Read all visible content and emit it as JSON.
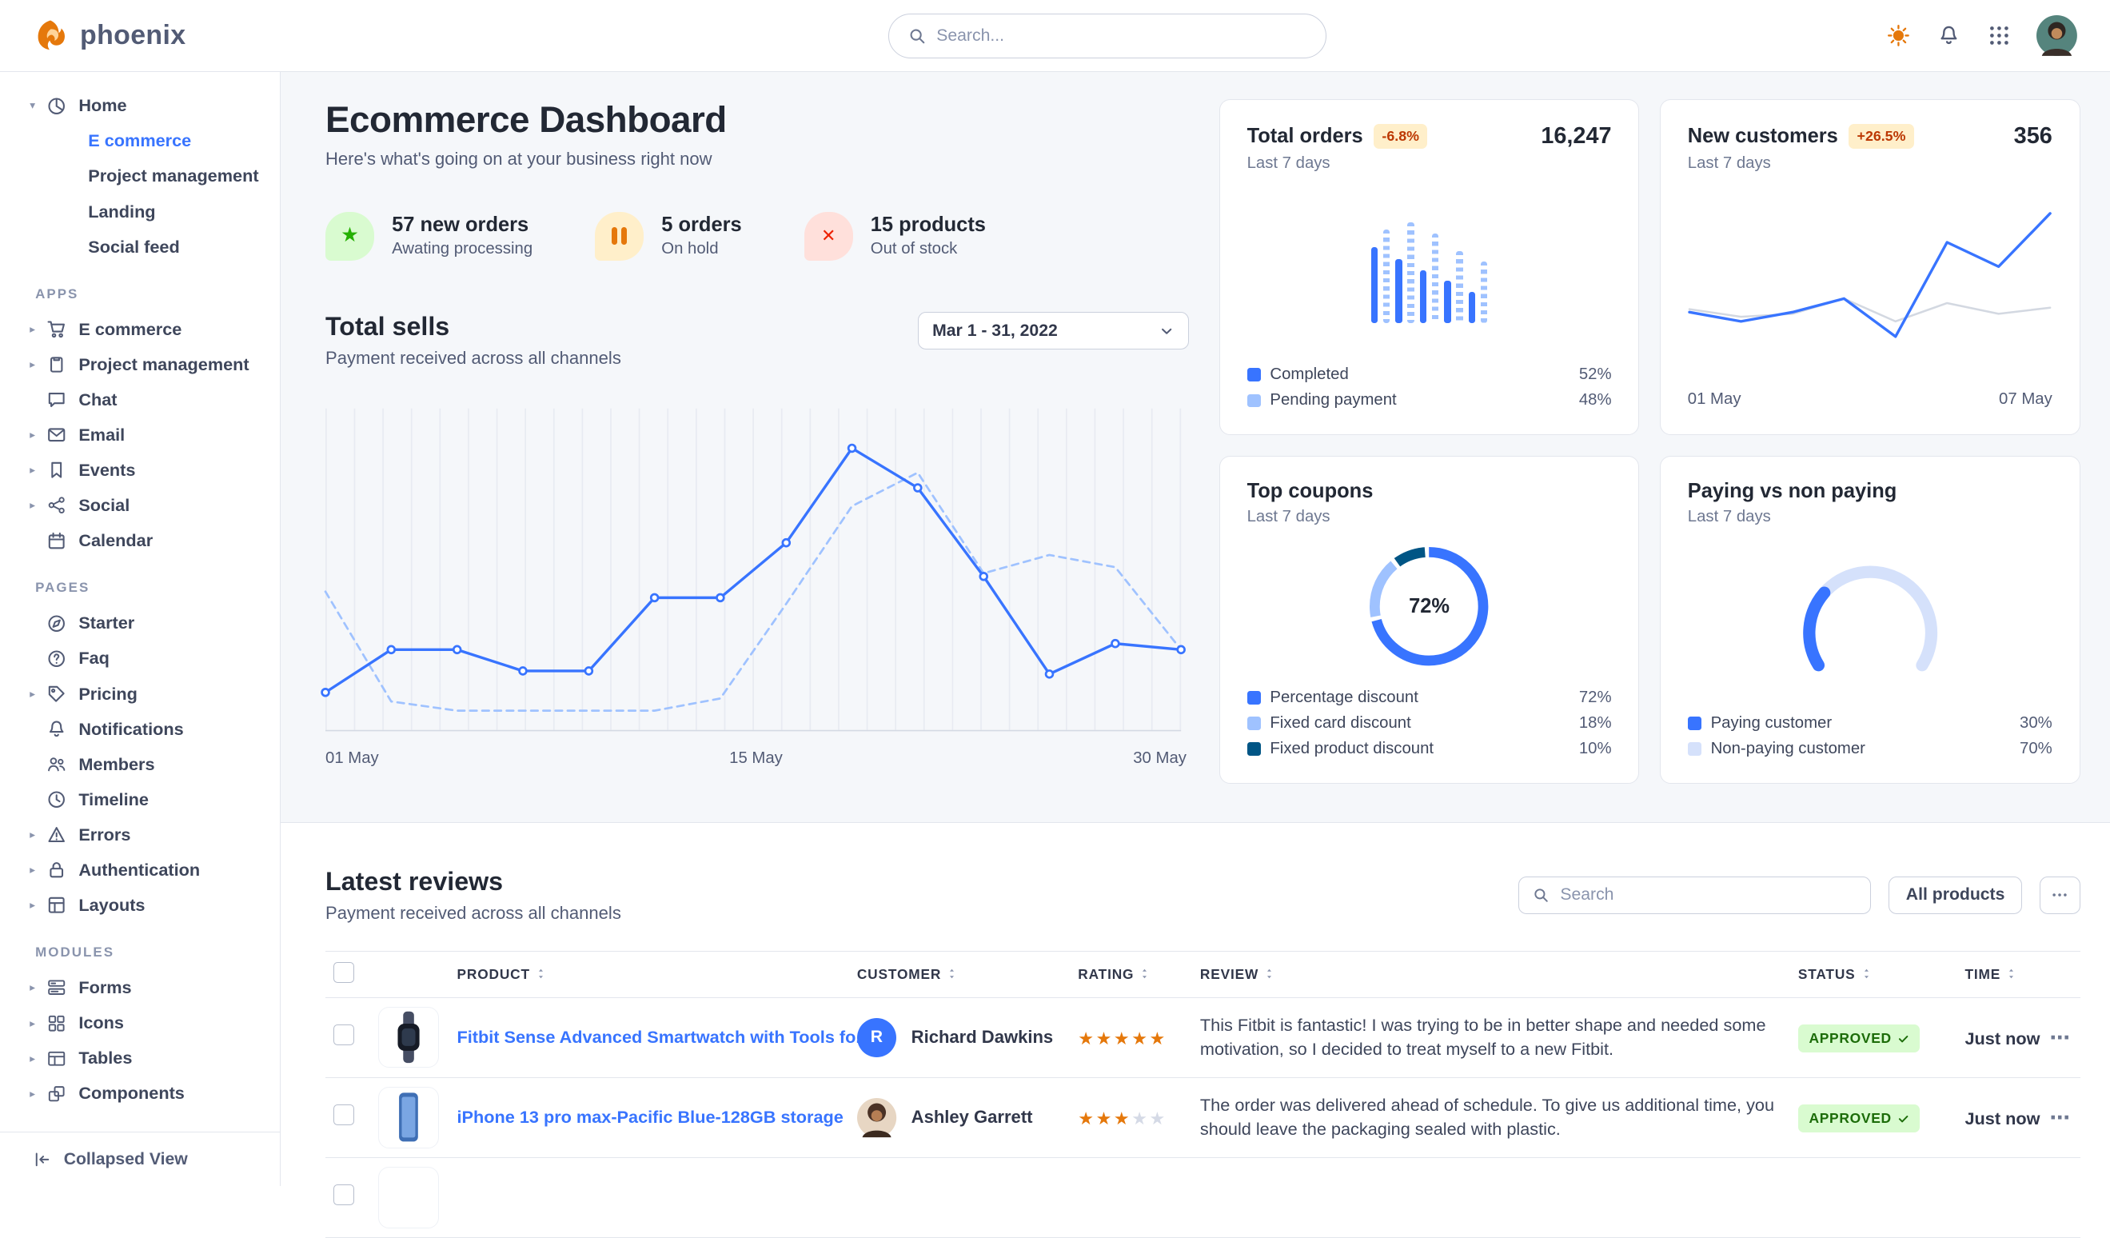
{
  "brand": {
    "name": "phoenix"
  },
  "topbar": {
    "search_placeholder": "Search..."
  },
  "sidebar": {
    "home": {
      "label": "Home",
      "items": [
        {
          "label": "E commerce",
          "active": true
        },
        {
          "label": "Project management",
          "active": false
        },
        {
          "label": "Landing",
          "active": false
        },
        {
          "label": "Social feed",
          "active": false
        }
      ]
    },
    "sections": [
      {
        "title": "APPS",
        "items": [
          {
            "label": "E commerce",
            "icon": "cart-icon",
            "caret": true
          },
          {
            "label": "Project management",
            "icon": "clipboard-icon",
            "caret": true
          },
          {
            "label": "Chat",
            "icon": "chat-icon",
            "caret": false
          },
          {
            "label": "Email",
            "icon": "mail-icon",
            "caret": true
          },
          {
            "label": "Events",
            "icon": "bookmark-icon",
            "caret": true
          },
          {
            "label": "Social",
            "icon": "share-icon",
            "caret": true
          },
          {
            "label": "Calendar",
            "icon": "calendar-icon",
            "caret": false
          }
        ]
      },
      {
        "title": "PAGES",
        "items": [
          {
            "label": "Starter",
            "icon": "compass-icon",
            "caret": false
          },
          {
            "label": "Faq",
            "icon": "question-icon",
            "caret": false
          },
          {
            "label": "Pricing",
            "icon": "tag-icon",
            "caret": true
          },
          {
            "label": "Notifications",
            "icon": "bell-icon",
            "caret": false
          },
          {
            "label": "Members",
            "icon": "users-icon",
            "caret": false
          },
          {
            "label": "Timeline",
            "icon": "clock-icon",
            "caret": false
          },
          {
            "label": "Errors",
            "icon": "warning-icon",
            "caret": true
          },
          {
            "label": "Authentication",
            "icon": "lock-icon",
            "caret": true
          },
          {
            "label": "Layouts",
            "icon": "layout-icon",
            "caret": true
          }
        ]
      },
      {
        "title": "MODULES",
        "items": [
          {
            "label": "Forms",
            "icon": "form-icon",
            "caret": true
          },
          {
            "label": "Icons",
            "icon": "icons-grid-icon",
            "caret": true
          },
          {
            "label": "Tables",
            "icon": "table-icon",
            "caret": true
          },
          {
            "label": "Components",
            "icon": "components-icon",
            "caret": true
          }
        ]
      }
    ],
    "collapsed_view": "Collapsed View"
  },
  "header": {
    "title": "Ecommerce Dashboard",
    "subtitle": "Here's what's going on at your business right now"
  },
  "stats": [
    {
      "value": "57 new orders",
      "caption": "Awating processing",
      "icon": "star-icon"
    },
    {
      "value": "5 orders",
      "caption": "On hold",
      "icon": "pause-icon"
    },
    {
      "value": "15 products",
      "caption": "Out of stock",
      "icon": "x-icon"
    }
  ],
  "total_sells": {
    "title": "Total sells",
    "subtitle": "Payment received across all channels",
    "date_range": "Mar 1 - 31, 2022",
    "x_labels": [
      "01 May",
      "15 May",
      "30 May"
    ]
  },
  "cards": {
    "total_orders": {
      "title": "Total orders",
      "badge": "-6.8%",
      "period": "Last 7 days",
      "value": "16,247",
      "legend": [
        {
          "label": "Completed",
          "value": "52%"
        },
        {
          "label": "Pending payment",
          "value": "48%"
        }
      ]
    },
    "new_customers": {
      "title": "New customers",
      "badge": "+26.5%",
      "period": "Last 7 days",
      "value": "356",
      "x_labels": [
        "01 May",
        "07 May"
      ]
    },
    "top_coupons": {
      "title": "Top coupons",
      "period": "Last 7 days",
      "center_label": "72%",
      "legend": [
        {
          "label": "Percentage discount",
          "value": "72%"
        },
        {
          "label": "Fixed card discount",
          "value": "18%"
        },
        {
          "label": "Fixed product discount",
          "value": "10%"
        }
      ]
    },
    "paying": {
      "title": "Paying vs non paying",
      "period": "Last 7 days",
      "legend": [
        {
          "label": "Paying customer",
          "value": "30%"
        },
        {
          "label": "Non-paying customer",
          "value": "70%"
        }
      ]
    }
  },
  "reviews": {
    "title": "Latest reviews",
    "subtitle": "Payment received across all channels",
    "search_placeholder": "Search",
    "filter_label": "All products",
    "columns": [
      "PRODUCT",
      "CUSTOMER",
      "RATING",
      "REVIEW",
      "STATUS",
      "TIME"
    ],
    "rows": [
      {
        "product": "Fitbit Sense Advanced Smartwatch with Tools fo...",
        "customer": "Richard Dawkins",
        "avatar_initial": "R",
        "rating": 5,
        "review": "This Fitbit is fantastic! I was trying to be in better shape and needed some motivation, so I decided to treat myself to a new Fitbit.",
        "status": "APPROVED",
        "time": "Just now"
      },
      {
        "product": "iPhone 13 pro max-Pacific Blue-128GB storage",
        "customer": "Ashley Garrett",
        "avatar_initial": "",
        "rating": 3,
        "review": "The order was delivered ahead of schedule. To give us additional time, you should leave the packaging sealed with plastic.",
        "status": "APPROVED",
        "time": "Just now"
      }
    ]
  },
  "colors": {
    "primary": "#3874ff",
    "primary_light": "#9fc2ff",
    "success": "#25b003",
    "warning": "#e5780b",
    "danger": "#ed2000"
  },
  "chart_data": [
    {
      "type": "line",
      "title": "Total sells",
      "x_labels": [
        "01 May",
        "15 May",
        "30 May"
      ],
      "ylim": [
        0,
        100
      ],
      "grid": "vertical",
      "legend_position": "none",
      "series": [
        {
          "name": "current period",
          "style": "solid",
          "color": "#3874ff",
          "values": [
            11,
            25,
            25,
            18,
            18,
            42,
            42,
            60,
            91,
            78,
            49,
            17,
            27,
            25
          ]
        },
        {
          "name": "previous period",
          "style": "dashed",
          "color": "#9fc2ff",
          "values": [
            44,
            8,
            5,
            5,
            5,
            5,
            9,
            40,
            72,
            83,
            50,
            56,
            52,
            25
          ]
        }
      ]
    },
    {
      "type": "bar",
      "title": "Total orders",
      "total": 16247,
      "change_pct": -6.8,
      "period": "Last 7 days",
      "values": [
        72,
        88,
        60,
        95,
        50,
        85,
        40,
        68,
        30,
        58
      ],
      "bar_styles": [
        "solid",
        "striped",
        "solid",
        "striped",
        "solid",
        "striped",
        "solid",
        "striped",
        "solid",
        "striped"
      ],
      "legend": [
        {
          "label": "Completed",
          "value": 52,
          "color": "#3874ff"
        },
        {
          "label": "Pending payment",
          "value": 48,
          "color": "#9fc2ff"
        }
      ]
    },
    {
      "type": "line",
      "title": "New customers",
      "total": 356,
      "change_pct": 26.5,
      "period": "Last 7 days",
      "x_labels": [
        "01 May",
        "07 May"
      ],
      "series": [
        {
          "name": "baseline",
          "style": "solid",
          "color": "#d3d8e1",
          "values": [
            35,
            30,
            32,
            42,
            27,
            39,
            32,
            36
          ]
        },
        {
          "name": "new customers",
          "style": "solid",
          "color": "#3874ff",
          "values": [
            33,
            27,
            33,
            42,
            17,
            79,
            63,
            98
          ]
        }
      ]
    },
    {
      "type": "pie",
      "title": "Top coupons",
      "period": "Last 7 days",
      "center_label": "72%",
      "slices": [
        {
          "label": "Percentage discount",
          "value": 72,
          "color": "#3874ff"
        },
        {
          "label": "Fixed card discount",
          "value": 18,
          "color": "#9fc2ff"
        },
        {
          "label": "Fixed product discount",
          "value": 10,
          "color": "#005585"
        }
      ]
    },
    {
      "type": "gauge",
      "title": "Paying vs non paying",
      "period": "Last 7 days",
      "slices": [
        {
          "label": "Paying customer",
          "value": 30,
          "color": "#3874ff"
        },
        {
          "label": "Non-paying customer",
          "value": 70,
          "color": "#d5e1fb"
        }
      ]
    }
  ]
}
